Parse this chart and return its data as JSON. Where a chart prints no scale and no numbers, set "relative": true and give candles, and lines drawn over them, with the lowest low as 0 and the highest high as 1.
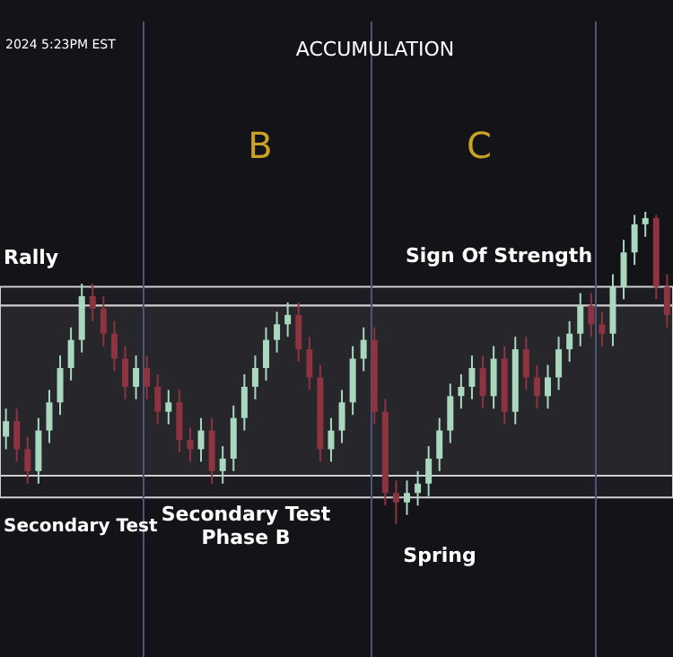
{
  "chart_data": {
    "type": "candlestick",
    "relative": true,
    "title": "ACCUMULATION",
    "annotations": [
      "2024 5:23PM EST",
      "B",
      "C",
      "Rally",
      "Sign Of Strength",
      "Secondary Test",
      "Secondary Test\nPhase B",
      "Spring"
    ],
    "categories": [
      null,
      null,
      null,
      null,
      null,
      null,
      null,
      null,
      null,
      null,
      null,
      null,
      null,
      null,
      null,
      null,
      null,
      null,
      null,
      null,
      null,
      null,
      null,
      null,
      null,
      null,
      null,
      null,
      null,
      null,
      null,
      null,
      null,
      null,
      null,
      null,
      null,
      null,
      null,
      null,
      null,
      null,
      null,
      null,
      null,
      null,
      null,
      null,
      null,
      null,
      null,
      null,
      null,
      null,
      null,
      null,
      null,
      null,
      null,
      null,
      null,
      null
    ],
    "ohlc": [
      [
        0.28,
        0.37,
        0.24,
        0.33
      ],
      [
        0.33,
        0.37,
        0.2,
        0.24
      ],
      [
        0.24,
        0.28,
        0.13,
        0.17
      ],
      [
        0.17,
        0.34,
        0.13,
        0.3
      ],
      [
        0.3,
        0.43,
        0.26,
        0.39
      ],
      [
        0.39,
        0.54,
        0.35,
        0.5
      ],
      [
        0.5,
        0.63,
        0.46,
        0.59
      ],
      [
        0.59,
        0.77,
        0.55,
        0.73
      ],
      [
        0.73,
        0.77,
        0.65,
        0.69
      ],
      [
        0.69,
        0.73,
        0.57,
        0.61
      ],
      [
        0.61,
        0.65,
        0.49,
        0.53
      ],
      [
        0.53,
        0.57,
        0.4,
        0.44
      ],
      [
        0.44,
        0.54,
        0.4,
        0.5
      ],
      [
        0.5,
        0.54,
        0.4,
        0.44
      ],
      [
        0.44,
        0.48,
        0.32,
        0.36
      ],
      [
        0.36,
        0.43,
        0.32,
        0.39
      ],
      [
        0.39,
        0.43,
        0.23,
        0.27
      ],
      [
        0.27,
        0.31,
        0.2,
        0.24
      ],
      [
        0.24,
        0.34,
        0.2,
        0.3
      ],
      [
        0.3,
        0.34,
        0.13,
        0.17
      ],
      [
        0.17,
        0.25,
        0.13,
        0.21
      ],
      [
        0.21,
        0.38,
        0.17,
        0.34
      ],
      [
        0.34,
        0.48,
        0.3,
        0.44
      ],
      [
        0.44,
        0.54,
        0.4,
        0.5
      ],
      [
        0.5,
        0.63,
        0.46,
        0.59
      ],
      [
        0.59,
        0.68,
        0.55,
        0.64
      ],
      [
        0.64,
        0.71,
        0.6,
        0.67
      ],
      [
        0.67,
        0.71,
        0.52,
        0.56
      ],
      [
        0.56,
        0.6,
        0.43,
        0.47
      ],
      [
        0.47,
        0.51,
        0.2,
        0.24
      ],
      [
        0.24,
        0.34,
        0.2,
        0.3
      ],
      [
        0.3,
        0.43,
        0.26,
        0.39
      ],
      [
        0.39,
        0.57,
        0.35,
        0.53
      ],
      [
        0.53,
        0.63,
        0.49,
        0.59
      ],
      [
        0.59,
        0.63,
        0.32,
        0.36
      ],
      [
        0.36,
        0.4,
        0.06,
        0.1
      ],
      [
        0.1,
        0.14,
        0.0,
        0.07
      ],
      [
        0.07,
        0.14,
        0.03,
        0.1
      ],
      [
        0.1,
        0.17,
        0.06,
        0.13
      ],
      [
        0.13,
        0.25,
        0.09,
        0.21
      ],
      [
        0.21,
        0.34,
        0.17,
        0.3
      ],
      [
        0.3,
        0.45,
        0.26,
        0.41
      ],
      [
        0.41,
        0.48,
        0.37,
        0.44
      ],
      [
        0.44,
        0.54,
        0.4,
        0.5
      ],
      [
        0.5,
        0.54,
        0.37,
        0.41
      ],
      [
        0.41,
        0.57,
        0.37,
        0.53
      ],
      [
        0.53,
        0.57,
        0.32,
        0.36
      ],
      [
        0.36,
        0.6,
        0.32,
        0.56
      ],
      [
        0.56,
        0.6,
        0.43,
        0.47
      ],
      [
        0.47,
        0.51,
        0.37,
        0.41
      ],
      [
        0.41,
        0.51,
        0.37,
        0.47
      ],
      [
        0.47,
        0.6,
        0.43,
        0.56
      ],
      [
        0.56,
        0.65,
        0.52,
        0.61
      ],
      [
        0.61,
        0.74,
        0.57,
        0.7
      ],
      [
        0.7,
        0.74,
        0.6,
        0.64
      ],
      [
        0.64,
        0.68,
        0.57,
        0.61
      ],
      [
        0.61,
        0.8,
        0.57,
        0.76
      ],
      [
        0.76,
        0.91,
        0.72,
        0.87
      ],
      [
        0.87,
        0.99,
        0.83,
        0.96
      ],
      [
        0.96,
        1.0,
        0.92,
        0.98
      ],
      [
        0.98,
        0.99,
        0.72,
        0.76
      ],
      [
        0.76,
        0.8,
        0.63,
        0.67
      ]
    ],
    "colors": [
      "#a9d8bf",
      "#8e3340",
      "#8e3340",
      "#a9d8bf",
      "#a9d8bf",
      "#a9d8bf",
      "#a9d8bf",
      "#a9d8bf",
      "#8e3340",
      "#8e3340",
      "#8e3340",
      "#8e3340",
      "#a9d8bf",
      "#8e3340",
      "#8e3340",
      "#a9d8bf",
      "#8e3340",
      "#8e3340",
      "#a9d8bf",
      "#8e3340",
      "#a9d8bf",
      "#a9d8bf",
      "#a9d8bf",
      "#a9d8bf",
      "#a9d8bf",
      "#a9d8bf",
      "#a9d8bf",
      "#8e3340",
      "#8e3340",
      "#8e3340",
      "#a9d8bf",
      "#a9d8bf",
      "#a9d8bf",
      "#a9d8bf",
      "#8e3340",
      "#8e3340",
      "#8e3340",
      "#a9d8bf",
      "#a9d8bf",
      "#a9d8bf",
      "#a9d8bf",
      "#a9d8bf",
      "#a9d8bf",
      "#a9d8bf",
      "#8e3340",
      "#a9d8bf",
      "#8e3340",
      "#a9d8bf",
      "#8e3340",
      "#8e3340",
      "#a9d8bf",
      "#a9d8bf",
      "#a9d8bf",
      "#a9d8bf",
      "#8e3340",
      "#8e3340",
      "#a9d8bf",
      "#a9d8bf",
      "#a9d8bf",
      "#a9d8bf",
      "#8e3340",
      "#8e3340"
    ],
    "bands": [
      {
        "axis": "y",
        "from": 0.7,
        "to": 0.76,
        "color": "#1c1c22"
      },
      {
        "axis": "y",
        "from": 0.155,
        "to": 0.7,
        "color": "#26262b"
      },
      {
        "axis": "y",
        "from": 0.086,
        "to": 0.155,
        "color": "#1c1c22"
      }
    ]
  }
}
